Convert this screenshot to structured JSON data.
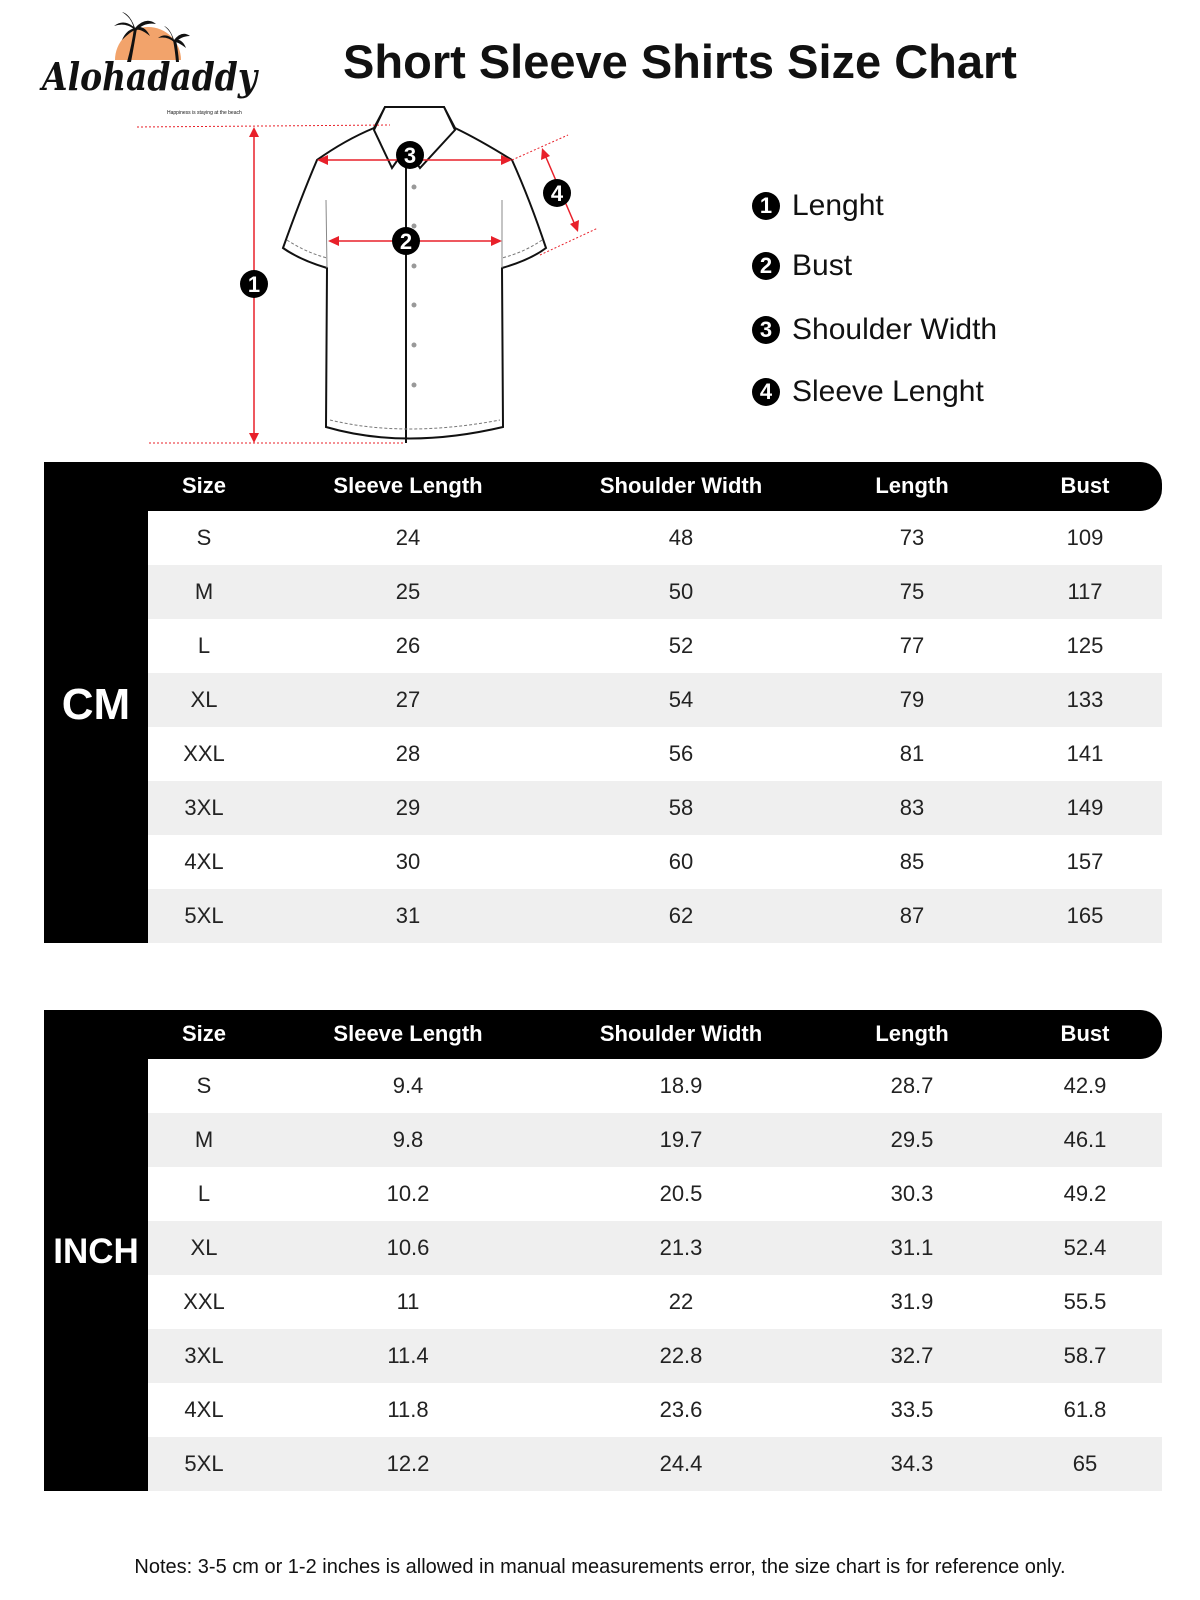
{
  "logo": {
    "brand": "Alohadaddy",
    "tagline": "Happiness is staying at the beach"
  },
  "title": "Short Sleeve Shirts Size Chart",
  "legend": [
    {
      "num": "1",
      "label": "Lenght"
    },
    {
      "num": "2",
      "label": "Bust"
    },
    {
      "num": "3",
      "label": "Shoulder Width"
    },
    {
      "num": "4",
      "label": "Sleeve Lenght"
    }
  ],
  "diagram_markers": [
    "1",
    "2",
    "3",
    "4"
  ],
  "colors": {
    "measure_red": "#e8202a",
    "header_black": "#000000",
    "alt_row": "#efefef",
    "sun_orange": "#f2a36b"
  },
  "columns": [
    "Size",
    "Sleeve Length",
    "Shoulder Width",
    "Length",
    "Bust"
  ],
  "tables": [
    {
      "unit": "CM",
      "rows": [
        [
          "S",
          "24",
          "48",
          "73",
          "109"
        ],
        [
          "M",
          "25",
          "50",
          "75",
          "117"
        ],
        [
          "L",
          "26",
          "52",
          "77",
          "125"
        ],
        [
          "XL",
          "27",
          "54",
          "79",
          "133"
        ],
        [
          "XXL",
          "28",
          "56",
          "81",
          "141"
        ],
        [
          "3XL",
          "29",
          "58",
          "83",
          "149"
        ],
        [
          "4XL",
          "30",
          "60",
          "85",
          "157"
        ],
        [
          "5XL",
          "31",
          "62",
          "87",
          "165"
        ]
      ]
    },
    {
      "unit": "INCH",
      "rows": [
        [
          "S",
          "9.4",
          "18.9",
          "28.7",
          "42.9"
        ],
        [
          "M",
          "9.8",
          "19.7",
          "29.5",
          "46.1"
        ],
        [
          "L",
          "10.2",
          "20.5",
          "30.3",
          "49.2"
        ],
        [
          "XL",
          "10.6",
          "21.3",
          "31.1",
          "52.4"
        ],
        [
          "XXL",
          "11",
          "22",
          "31.9",
          "55.5"
        ],
        [
          "3XL",
          "11.4",
          "22.8",
          "32.7",
          "58.7"
        ],
        [
          "4XL",
          "11.8",
          "23.6",
          "33.5",
          "61.8"
        ],
        [
          "5XL",
          "12.2",
          "24.4",
          "34.3",
          "65"
        ]
      ]
    }
  ],
  "notes": "Notes: 3-5 cm or 1-2 inches is allowed in manual measurements error, the size chart is for reference only."
}
